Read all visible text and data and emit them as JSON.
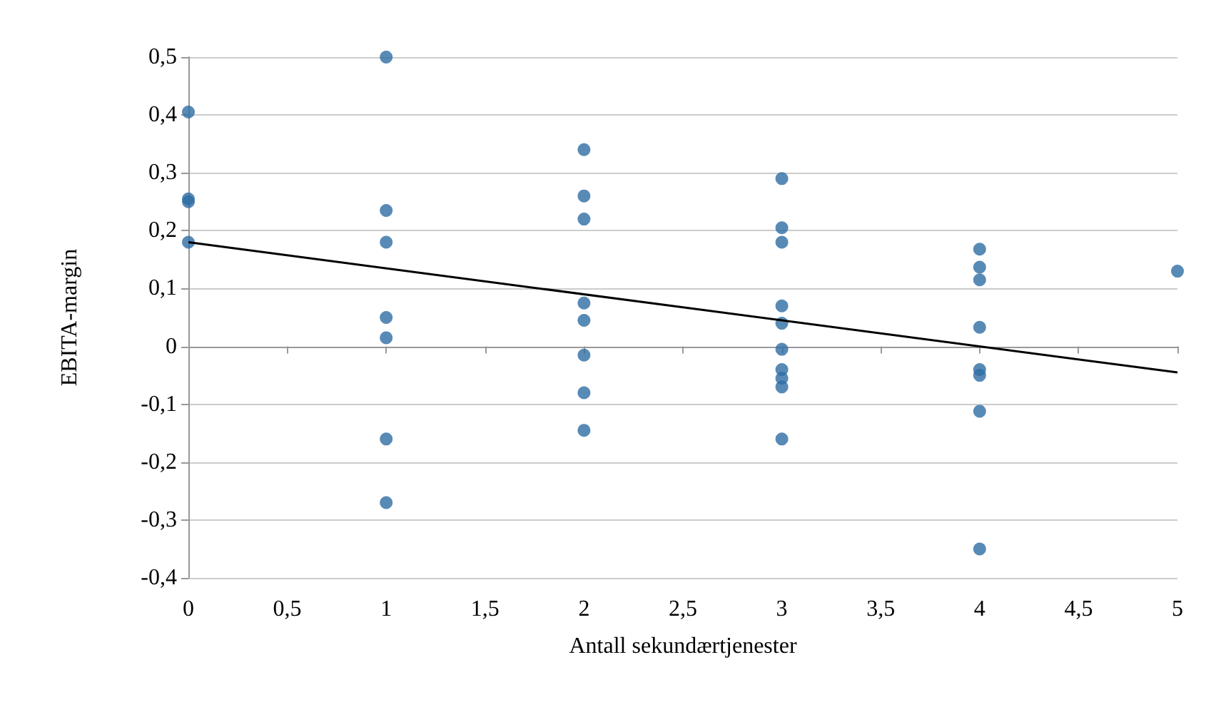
{
  "chart_data": {
    "type": "scatter",
    "xlabel": "Antall sekundærtjenester",
    "ylabel": "EBITA-margin",
    "xlim": [
      0,
      5
    ],
    "xticks": [
      {
        "value": 0,
        "label": "0"
      },
      {
        "value": 0.5,
        "label": "0,5"
      },
      {
        "value": 1,
        "label": "1"
      },
      {
        "value": 1.5,
        "label": "1,5"
      },
      {
        "value": 2,
        "label": "2"
      },
      {
        "value": 2.5,
        "label": "2,5"
      },
      {
        "value": 3,
        "label": "3"
      },
      {
        "value": 3.5,
        "label": "3,5"
      },
      {
        "value": 4,
        "label": "4"
      },
      {
        "value": 4.5,
        "label": "4,5"
      },
      {
        "value": 5,
        "label": "5"
      }
    ],
    "ylim": [
      -0.4,
      0.5
    ],
    "yticks": [
      {
        "value": -0.4,
        "label": "-0,4"
      },
      {
        "value": -0.3,
        "label": "-0,3"
      },
      {
        "value": -0.2,
        "label": "-0,2"
      },
      {
        "value": -0.1,
        "label": "-0,1"
      },
      {
        "value": 0,
        "label": "0"
      },
      {
        "value": 0.1,
        "label": "0,1"
      },
      {
        "value": 0.2,
        "label": "0,2"
      },
      {
        "value": 0.3,
        "label": "0,3"
      },
      {
        "value": 0.4,
        "label": "0,4"
      },
      {
        "value": 0.5,
        "label": "0,5"
      }
    ],
    "grid": "y",
    "series": [
      {
        "color": "#2e6da4",
        "marker": "circle",
        "x": [
          0,
          0,
          0,
          0,
          1,
          1,
          1,
          1,
          1,
          1,
          1,
          2,
          2,
          2,
          2,
          2,
          2,
          2,
          2,
          3,
          3,
          3,
          3,
          3,
          3,
          3,
          3,
          3,
          3,
          4,
          4,
          4,
          4,
          4,
          4,
          4,
          4,
          5
        ],
        "values": [
          0.405,
          0.255,
          0.25,
          0.18,
          0.5,
          0.235,
          0.18,
          0.05,
          0.015,
          -0.16,
          -0.27,
          0.34,
          0.26,
          0.22,
          0.075,
          0.045,
          -0.015,
          -0.08,
          -0.145,
          0.29,
          0.205,
          0.18,
          0.07,
          0.04,
          -0.005,
          -0.04,
          -0.055,
          -0.07,
          -0.16,
          0.168,
          0.137,
          0.115,
          0.033,
          -0.04,
          -0.05,
          -0.112,
          -0.35,
          0.13
        ]
      },
      {
        "type": "line",
        "color": "#000000",
        "line_style": "solid",
        "marker": "none",
        "x": [
          0,
          5
        ],
        "values": [
          0.18,
          -0.045
        ]
      }
    ]
  }
}
